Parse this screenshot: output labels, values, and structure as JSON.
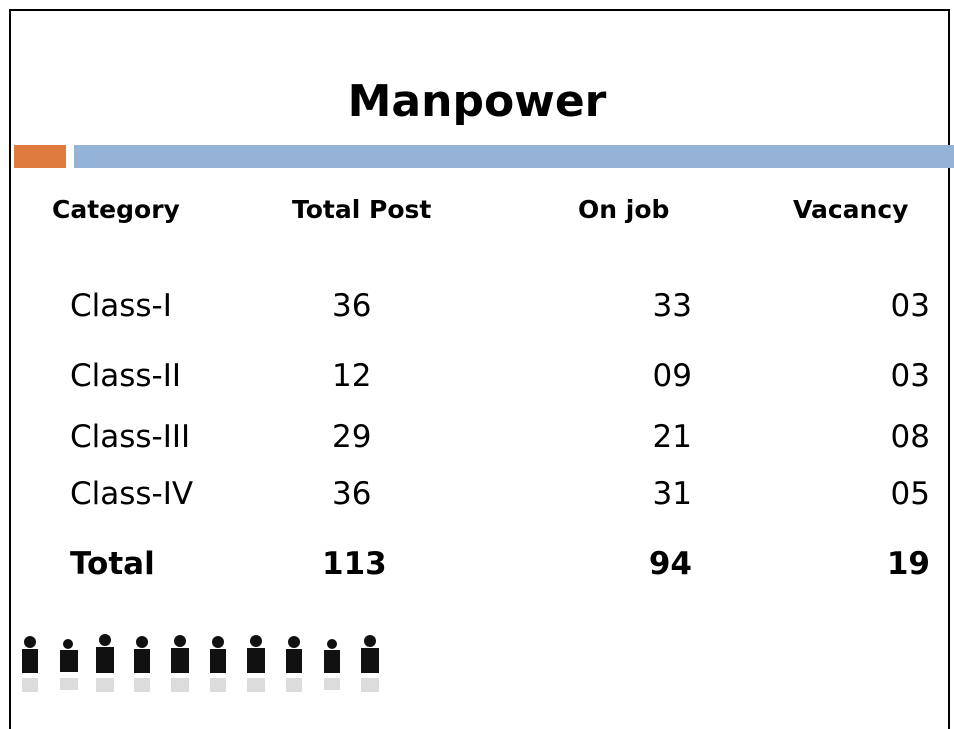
{
  "header": {
    "title": "Manpower"
  },
  "table": {
    "columns": [
      "Category",
      "Total Post",
      "On job",
      "Vacancy"
    ],
    "rows": [
      [
        "Class-I",
        "36",
        "33",
        "03"
      ],
      [
        "Class-II",
        "12",
        "09",
        "03"
      ],
      [
        "Class-III",
        "29",
        "21",
        "08"
      ],
      [
        "Class-IV",
        "36",
        "31",
        "05"
      ]
    ],
    "total": [
      "Total",
      "113",
      "94",
      "19"
    ]
  }
}
